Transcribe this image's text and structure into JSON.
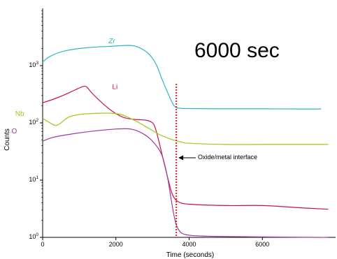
{
  "chart_data": {
    "type": "line",
    "title": "",
    "xlabel": "Time (seconds)",
    "ylabel": "Counts",
    "xlim": [
      0,
      8000
    ],
    "ylim": [
      1,
      10000
    ],
    "y_scale": "log",
    "grid": false,
    "x_ticks": [
      {
        "value": 0,
        "label": "0"
      },
      {
        "value": 2000,
        "label": "2000"
      },
      {
        "value": 4000,
        "label": "4000"
      },
      {
        "value": 6000,
        "label": "6000"
      }
    ],
    "y_ticks": [
      {
        "value": 1,
        "base": "10",
        "exp": "0"
      },
      {
        "value": 10,
        "base": "10",
        "exp": "1"
      },
      {
        "value": 100,
        "base": "10",
        "exp": "2"
      },
      {
        "value": 1000,
        "base": "10",
        "exp": "3"
      }
    ],
    "series": [
      {
        "name": "Zr",
        "color": "#2fb7c4",
        "points": [
          [
            0,
            1150
          ],
          [
            200,
            1450
          ],
          [
            600,
            1800
          ],
          [
            1200,
            2050
          ],
          [
            2000,
            2200
          ],
          [
            2400,
            2250
          ],
          [
            2650,
            2050
          ],
          [
            2900,
            1600
          ],
          [
            3100,
            1050
          ],
          [
            3250,
            600
          ],
          [
            3450,
            300
          ],
          [
            3600,
            195
          ],
          [
            3750,
            180
          ],
          [
            4000,
            178
          ],
          [
            5000,
            176
          ],
          [
            6000,
            176
          ],
          [
            7000,
            175
          ],
          [
            7600,
            175
          ]
        ],
        "label_at": [
          1800,
          2450
        ]
      },
      {
        "name": "Li",
        "color": "#cc1144",
        "points": [
          [
            0,
            225
          ],
          [
            300,
            260
          ],
          [
            600,
            310
          ],
          [
            900,
            380
          ],
          [
            1100,
            430
          ],
          [
            1200,
            425
          ],
          [
            1350,
            330
          ],
          [
            1600,
            230
          ],
          [
            1900,
            160
          ],
          [
            2200,
            125
          ],
          [
            2500,
            115
          ],
          [
            2800,
            112
          ],
          [
            2950,
            105
          ],
          [
            3050,
            90
          ],
          [
            3150,
            55
          ],
          [
            3300,
            22
          ],
          [
            3450,
            9
          ],
          [
            3550,
            5.5
          ],
          [
            3700,
            4.2
          ],
          [
            4000,
            3.8
          ],
          [
            5000,
            3.6
          ],
          [
            6000,
            3.6
          ],
          [
            7000,
            3.3
          ],
          [
            7800,
            3.1
          ]
        ],
        "label_at": [
          1900,
          390
        ]
      },
      {
        "name": "Nb",
        "color": "#a5c41c",
        "points": [
          [
            0,
            120
          ],
          [
            150,
            105
          ],
          [
            350,
            90
          ],
          [
            500,
            100
          ],
          [
            700,
            125
          ],
          [
            1000,
            140
          ],
          [
            1400,
            146
          ],
          [
            1800,
            148
          ],
          [
            2100,
            142
          ],
          [
            2300,
            128
          ],
          [
            2600,
            103
          ],
          [
            2900,
            80
          ],
          [
            3200,
            62
          ],
          [
            3500,
            52
          ],
          [
            3800,
            46
          ],
          [
            4000,
            44
          ],
          [
            5000,
            42
          ],
          [
            6000,
            42
          ],
          [
            7000,
            42
          ],
          [
            7800,
            42
          ]
        ],
        "label_at": [
          -750,
          132
        ]
      },
      {
        "name": "O",
        "color": "#9a3a9e",
        "points": [
          [
            0,
            48
          ],
          [
            300,
            56
          ],
          [
            800,
            64
          ],
          [
            1400,
            72
          ],
          [
            2000,
            78
          ],
          [
            2400,
            78
          ],
          [
            2700,
            67
          ],
          [
            3000,
            48
          ],
          [
            3250,
            28
          ],
          [
            3400,
            12
          ],
          [
            3500,
            5
          ],
          [
            3600,
            2.2
          ],
          [
            3700,
            1.4
          ],
          [
            3900,
            1.12
          ],
          [
            4500,
            1.05
          ],
          [
            6000,
            1.02
          ],
          [
            7500,
            1.0
          ],
          [
            7800,
            1.0
          ]
        ],
        "label_at": [
          -850,
          66
        ]
      }
    ],
    "annotations": {
      "condition": "6000 sec",
      "interface_label": "Oxide/metal interface",
      "interface_x": 3650
    }
  }
}
